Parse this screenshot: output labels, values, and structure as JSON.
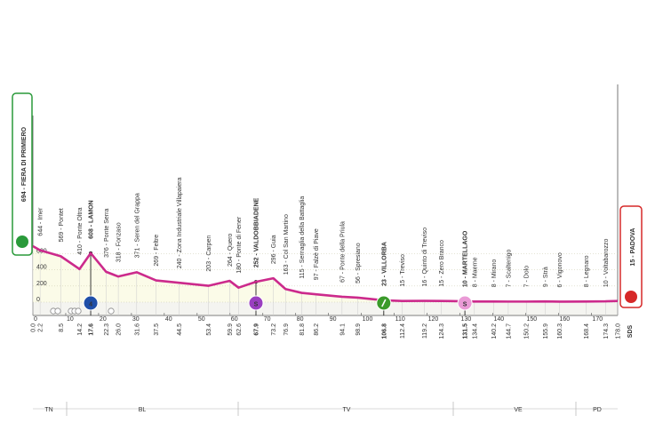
{
  "chart_data": {
    "type": "area",
    "x": [
      0.0,
      2.2,
      8.5,
      14.2,
      17.6,
      22.3,
      26.0,
      31.6,
      37.5,
      44.5,
      53.4,
      59.9,
      62.6,
      67.9,
      73.2,
      76.9,
      81.8,
      86.2,
      94.1,
      98.9,
      106.8,
      112.4,
      119.2,
      124.3,
      131.5,
      134.4,
      140.2,
      144.7,
      150.2,
      155.9,
      160.3,
      168.4,
      174.3,
      178.0
    ],
    "x_labels": [
      "0.0",
      "2.2",
      "8.5",
      "14.2",
      "17.6",
      "22.3",
      "26.0",
      "31.6",
      "37.5",
      "44.5",
      "53.4",
      "59.9",
      "62.6",
      "67.9",
      "73.2",
      "76.9",
      "81.8",
      "86.2",
      "94.1",
      "98.9",
      "106.8",
      "112.4",
      "119.2",
      "124.3",
      "131.5",
      "134.4",
      "140.2",
      "144.7",
      "150.2",
      "155.9",
      "160.3",
      "168.4",
      "174.3",
      "178.0"
    ],
    "values": [
      694,
      644,
      569,
      410,
      608,
      376,
      318,
      371,
      269,
      240,
      203,
      264,
      180,
      252,
      296,
      163,
      115,
      97,
      67,
      56,
      23,
      15,
      16,
      15,
      10,
      8,
      8,
      7,
      7,
      9,
      6,
      8,
      10,
      15
    ],
    "value_labels": [
      "694 - FIERA DI PRIMIERO",
      "644 - Imer",
      "569 - Pontet",
      "410 - Ponte Oltra",
      "608 - LAMON",
      "376 - Ponte Serra",
      "318 - Fonzaso",
      "371 - Seren del Grappa",
      "269 - Feltre",
      "240 - Zona Industriale Villapaiera",
      "203 - Carpen",
      "264 - Quero",
      "180 - Ponte di Fener",
      "252 - VALDOBBIADENE",
      "296 - Guia",
      "163 - Col San Martino",
      "115 - Sernaglia della Battaglia",
      "97 - Falzè di Piave",
      "67 - Ponte della Priula",
      "56 - Spresiano",
      "23 - VILLORBA",
      "15 - Treviso",
      "16 - Quinto di Treviso",
      "15 - Zero Branco",
      "10 - MARTELLAGO",
      "8 - Maerne",
      "8 - Mirano",
      "7 - Scaltenigo",
      "7 - Dolo",
      "9 - Strà",
      "6 - Vigonovo",
      "8 - Legnaro",
      "10 - Voltabarozzo",
      "15 - PADOVA"
    ],
    "color": "#cc2a8c",
    "fill": "#fbfbe8",
    "xlim": [
      0,
      178
    ],
    "xticks": [
      0,
      10,
      20,
      30,
      40,
      50,
      60,
      70,
      80,
      90,
      100,
      110,
      120,
      130,
      140,
      150,
      160,
      170
    ],
    "ylim": [
      0,
      700
    ],
    "yticks": [
      0,
      200,
      400,
      600
    ],
    "grid": true,
    "markers": [
      {
        "x": 17.6,
        "label": "4",
        "color": "#1f4fa8"
      },
      {
        "x": 67.9,
        "label": "S",
        "color": "#9a3fc0"
      },
      {
        "x": 106.8,
        "color": "#3a9a2a"
      },
      {
        "x": 131.5,
        "label": "S",
        "color": "#ea9ad6"
      }
    ],
    "regions": [
      "TN",
      "BL",
      "TV",
      "VE",
      "PD"
    ],
    "logo": "SDS"
  }
}
